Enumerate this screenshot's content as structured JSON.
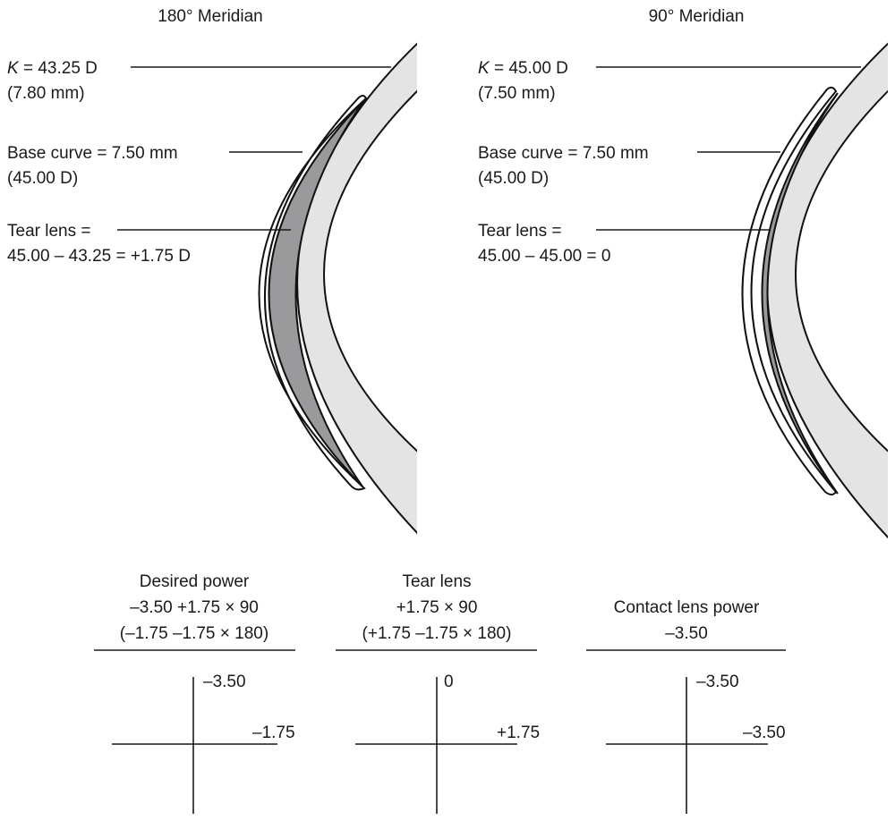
{
  "left": {
    "title": "180° Meridian",
    "k_symbol": "K",
    "k_value": " = 43.25 D",
    "k_mm": "(7.80 mm)",
    "base_curve": "Base curve = 7.50 mm",
    "base_curve_d": "(45.00 D)",
    "tear_lens": "Tear lens =",
    "tear_lens_calc": "45.00 – 43.25 = +1.75 D"
  },
  "right": {
    "title": "90° Meridian",
    "k_symbol": "K",
    "k_value": " = 45.00 D",
    "k_mm": "(7.50 mm)",
    "base_curve": "Base curve = 7.50 mm",
    "base_curve_d": "(45.00 D)",
    "tear_lens": "Tear lens =",
    "tear_lens_calc": "45.00 – 45.00 = 0"
  },
  "power_crosses": [
    {
      "line1": "Desired power",
      "line2": "–3.50 +1.75 × 90",
      "line3": "(–1.75 –1.75 × 180)",
      "vertical": "–3.50",
      "horizontal": "–1.75"
    },
    {
      "line1": "Tear lens",
      "line2": "+1.75 × 90",
      "line3": "(+1.75 –1.75 × 180)",
      "vertical": "0",
      "horizontal": "+1.75"
    },
    {
      "line1": "Contact lens power",
      "line2": "–3.50",
      "vertical": "–3.50",
      "horizontal": "–3.50"
    }
  ],
  "colors": {
    "cornea": "#e4e4e4",
    "tear_film": "#9a9a9c",
    "line": "#1a1a1a"
  }
}
